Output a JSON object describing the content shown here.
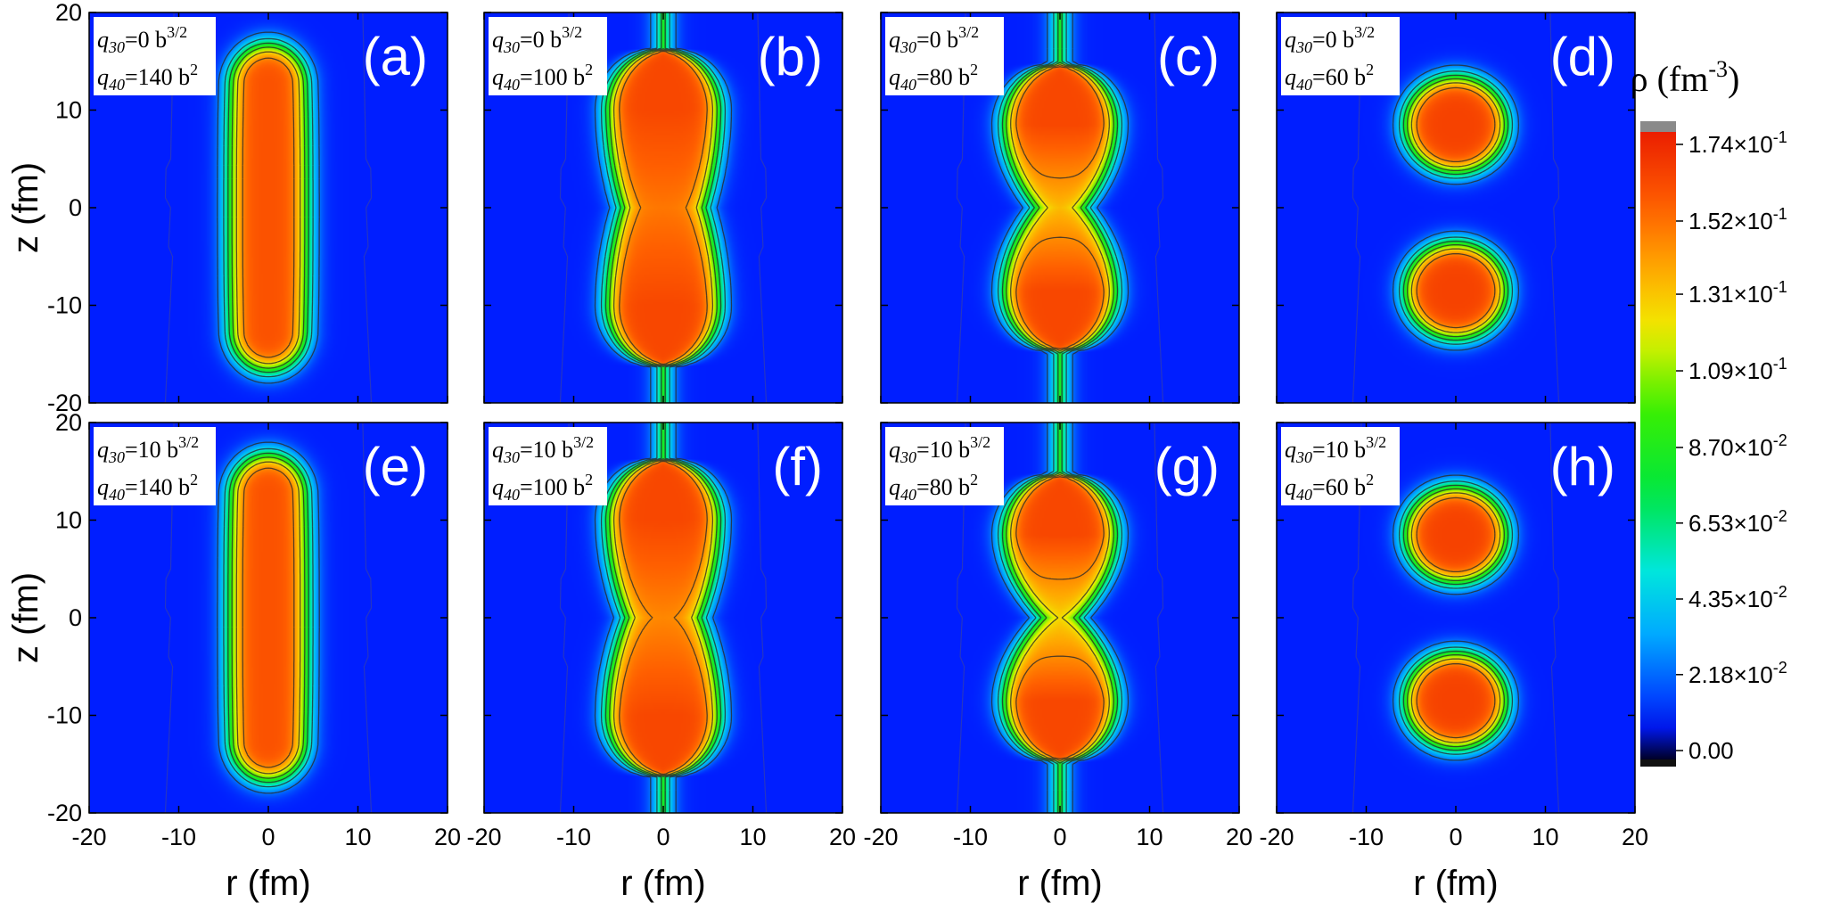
{
  "chart_data": {
    "type": "heatmap",
    "xlabel": "r (fm)",
    "ylabel": "z (fm)",
    "xlim": [
      -20,
      20
    ],
    "ylim": [
      -20,
      20
    ],
    "x_ticks": [
      -20,
      -10,
      0,
      10,
      20
    ],
    "x_tick_labels": [
      "-20",
      "-10",
      "0",
      "10",
      "20"
    ],
    "y_ticks": [
      20,
      10,
      0,
      -10,
      -20
    ],
    "y_tick_labels": [
      "20",
      "10",
      "0",
      "-10",
      "-20"
    ],
    "colorbar": {
      "title": "ρ (fm",
      "title_sup": "-3",
      "title_close": ")",
      "range": [
        0,
        0.174
      ],
      "ticks": [
        0.174,
        0.152,
        0.131,
        0.109,
        0.087,
        0.0653,
        0.0435,
        0.0218,
        0.0
      ],
      "labels": [
        {
          "mant": "1.74×10",
          "exp": "-1"
        },
        {
          "mant": "1.52×10",
          "exp": "-1"
        },
        {
          "mant": "1.31×10",
          "exp": "-1"
        },
        {
          "mant": "1.09×10",
          "exp": "-1"
        },
        {
          "mant": "8.70×10",
          "exp": "-2"
        },
        {
          "mant": "6.53×10",
          "exp": "-2"
        },
        {
          "mant": "4.35×10",
          "exp": "-2"
        },
        {
          "mant": "2.18×10",
          "exp": "-2"
        },
        {
          "mant": "0.00",
          "exp": ""
        }
      ]
    },
    "panels": [
      {
        "id": "a",
        "letter": "(a)",
        "q30": "0",
        "q40": "140",
        "shape": "rod",
        "half_length": 17
      },
      {
        "id": "b",
        "letter": "(b)",
        "q30": "0",
        "q40": "100",
        "shape": "neck",
        "fragment_center": 10,
        "neck_strength": 0.35
      },
      {
        "id": "c",
        "letter": "(c)",
        "q30": "0",
        "q40": "80",
        "shape": "neck",
        "fragment_center": 8.5,
        "neck_strength": 0.75
      },
      {
        "id": "d",
        "letter": "(d)",
        "q30": "0",
        "q40": "60",
        "shape": "split",
        "fragment_center": 8.5
      },
      {
        "id": "e",
        "letter": "(e)",
        "q30": "10",
        "q40": "140",
        "shape": "rod",
        "half_length": 17
      },
      {
        "id": "f",
        "letter": "(f)",
        "q30": "10",
        "q40": "100",
        "shape": "neck",
        "fragment_center": 10,
        "neck_strength": 0.45
      },
      {
        "id": "g",
        "letter": "(g)",
        "q30": "10",
        "q40": "80",
        "shape": "neck",
        "fragment_center": 8.5,
        "neck_strength": 0.9
      },
      {
        "id": "h",
        "letter": "(h)",
        "q30": "10",
        "q40": "60",
        "shape": "split",
        "fragment_center": 8.5
      }
    ],
    "q30_prefix": "=",
    "q30_unit": " b",
    "q30_unit_sup": "3/2",
    "q40_prefix": "=",
    "q40_unit": " b",
    "q40_unit_sup": "2",
    "q30_sym": "q",
    "q30_sub": "30",
    "q40_sym": "q",
    "q40_sub": "40"
  }
}
